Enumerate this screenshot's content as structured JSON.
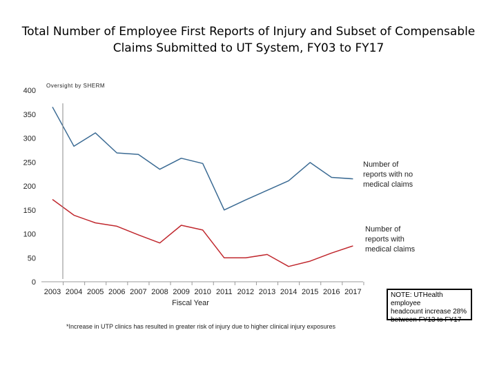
{
  "chart_data": {
    "type": "line",
    "title_line1": "Total Number of Employee First Reports of Injury and Subset of Compensable",
    "title_line2": "Claims Submitted to UT System, FY03 to FY17",
    "xlabel": "Fiscal Year",
    "ylabel": "",
    "ylim": [
      0,
      400
    ],
    "yticks": [
      0,
      50,
      100,
      150,
      200,
      250,
      300,
      350,
      400
    ],
    "categories": [
      "2003",
      "2004",
      "2005",
      "2006",
      "2007",
      "2008",
      "2009",
      "2010",
      "2011",
      "2012",
      "2013",
      "2014",
      "2015",
      "2016",
      "2017"
    ],
    "series": [
      {
        "name": "Number of reports with no medical claims",
        "name_lines": [
          "Number of",
          "reports with no",
          "medical claims"
        ],
        "color": "#3a6a93",
        "values": [
          365,
          283,
          311,
          269,
          266,
          235,
          258,
          247,
          150,
          171,
          191,
          211,
          249,
          218,
          215
        ]
      },
      {
        "name": "Number of reports with medical claims",
        "name_lines": [
          "Number of",
          "reports with",
          "medical claims"
        ],
        "color": "#c0272d",
        "values": [
          172,
          139,
          123,
          116,
          98,
          81,
          118,
          108,
          50,
          50,
          57,
          32,
          43,
          60,
          75
        ]
      }
    ],
    "grid": false,
    "oversight_label": "Oversight by SHERM",
    "note_lines": [
      "NOTE: UTHealth employee",
      "headcount increase 28%",
      "between FY13 to FY17"
    ],
    "footnote": "*Increase in UTP clinics has resulted in greater risk of injury due to higher clinical injury exposures"
  }
}
